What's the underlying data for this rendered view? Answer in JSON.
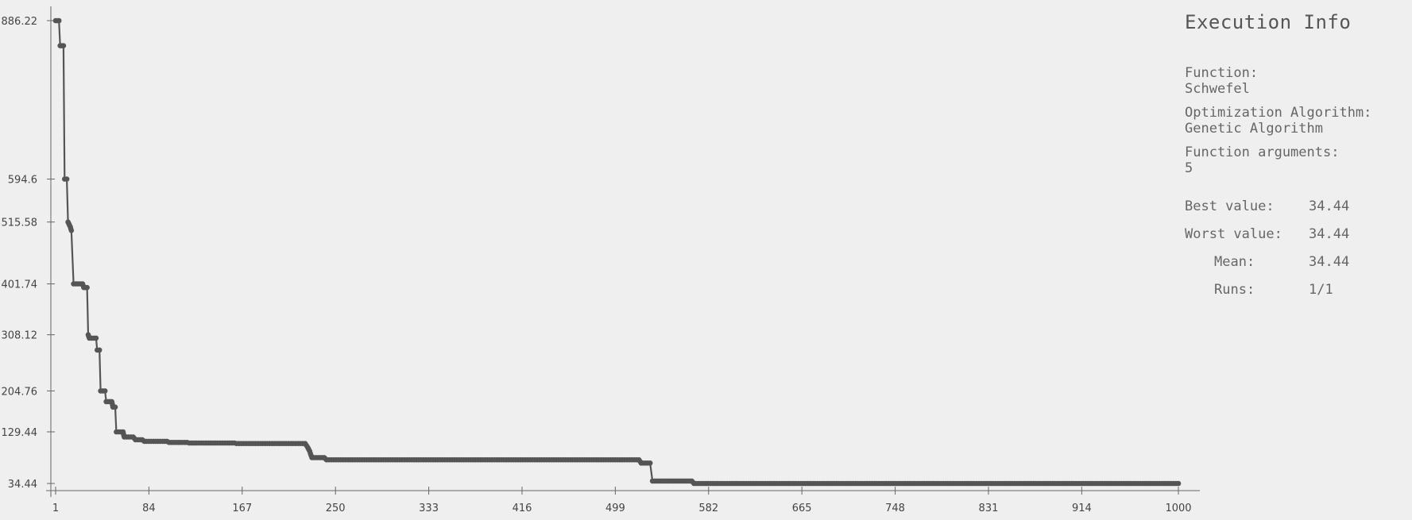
{
  "info": {
    "title": "Execution Info",
    "function_label": "Function:",
    "function_value": "Schwefel",
    "algorithm_label": "Optimization Algorithm:",
    "algorithm_value": "Genetic Algorithm",
    "args_label": "Function arguments:",
    "args_value": "5",
    "best_label": "Best value:",
    "best_value": "34.44",
    "worst_label": "Worst value:",
    "worst_value": "34.44",
    "mean_label": "Mean:",
    "mean_value": "34.44",
    "runs_label": "Runs:",
    "runs_value": "1/1"
  },
  "chart_data": {
    "type": "line",
    "x_ticks": [
      1,
      84,
      167,
      250,
      333,
      416,
      499,
      582,
      665,
      748,
      831,
      914,
      1000
    ],
    "y_ticks": [
      34.44,
      129.44,
      204.76,
      308.12,
      401.74,
      515.58,
      594.6,
      886.22
    ],
    "x_tick_labels": [
      "1",
      "84",
      "167",
      "250",
      "333",
      "416",
      "499",
      "582",
      "665",
      "748",
      "831",
      "914",
      "1000"
    ],
    "y_tick_labels": [
      "34.44",
      "129.44",
      "204.76",
      "308.12",
      "401.74",
      "515.58",
      "594.6",
      "886.22"
    ],
    "xlim": [
      1,
      1000
    ],
    "ylim": [
      34.44,
      886.22
    ],
    "color": "#555555",
    "series": [
      {
        "values": [
          [
            1,
            886.22
          ],
          [
            4,
            886.22
          ],
          [
            5,
            840
          ],
          [
            8,
            840
          ],
          [
            9,
            594.6
          ],
          [
            11,
            594.6
          ],
          [
            12,
            515.58
          ],
          [
            14,
            507
          ],
          [
            15,
            500
          ],
          [
            17,
            401.74
          ],
          [
            25,
            401.74
          ],
          [
            26,
            395
          ],
          [
            29,
            395
          ],
          [
            30,
            308.12
          ],
          [
            31,
            302
          ],
          [
            37,
            302
          ],
          [
            38,
            280
          ],
          [
            40,
            280
          ],
          [
            41,
            204.76
          ],
          [
            45,
            204.76
          ],
          [
            46,
            185
          ],
          [
            51,
            185
          ],
          [
            52,
            175
          ],
          [
            54,
            175
          ],
          [
            55,
            129.44
          ],
          [
            61,
            129.44
          ],
          [
            62,
            120
          ],
          [
            70,
            120
          ],
          [
            72,
            115
          ],
          [
            78,
            115
          ],
          [
            80,
            112
          ],
          [
            100,
            112
          ],
          [
            102,
            110
          ],
          [
            118,
            110
          ],
          [
            120,
            109
          ],
          [
            160,
            109
          ],
          [
            162,
            108
          ],
          [
            223,
            108
          ],
          [
            225,
            102
          ],
          [
            227,
            94
          ],
          [
            229,
            82
          ],
          [
            240,
            82
          ],
          [
            242,
            78
          ],
          [
            520,
            78
          ],
          [
            522,
            72
          ],
          [
            530,
            72
          ],
          [
            532,
            39
          ],
          [
            567,
            39
          ],
          [
            569,
            34.44
          ],
          [
            1000,
            34.44
          ]
        ]
      }
    ]
  }
}
